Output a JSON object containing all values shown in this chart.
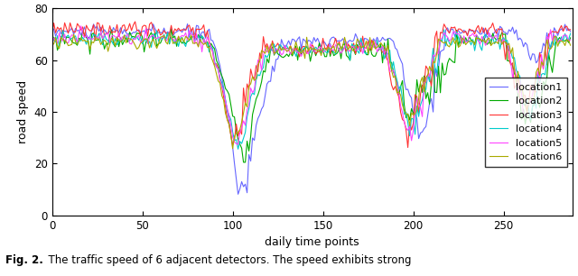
{
  "n_points": 288,
  "xlim": [
    0,
    288
  ],
  "ylim": [
    0,
    80
  ],
  "xlabel": "daily time points",
  "ylabel": "road speed",
  "xticks": [
    0,
    50,
    100,
    150,
    200,
    250
  ],
  "yticks": [
    0,
    20,
    40,
    60,
    80
  ],
  "colors": [
    "#6666ff",
    "#00aa00",
    "#ff3333",
    "#00cccc",
    "#ff44ff",
    "#aaaa00"
  ],
  "labels": [
    "location1",
    "location2",
    "location3",
    "location4",
    "location5",
    "location6"
  ],
  "caption_bold": "Fig. 2.",
  "caption_normal": "  The traffic speed of 6 adjacent detectors. The speed exhibits strong",
  "figure_size": [
    6.4,
    3.06
  ],
  "dpi": 100
}
